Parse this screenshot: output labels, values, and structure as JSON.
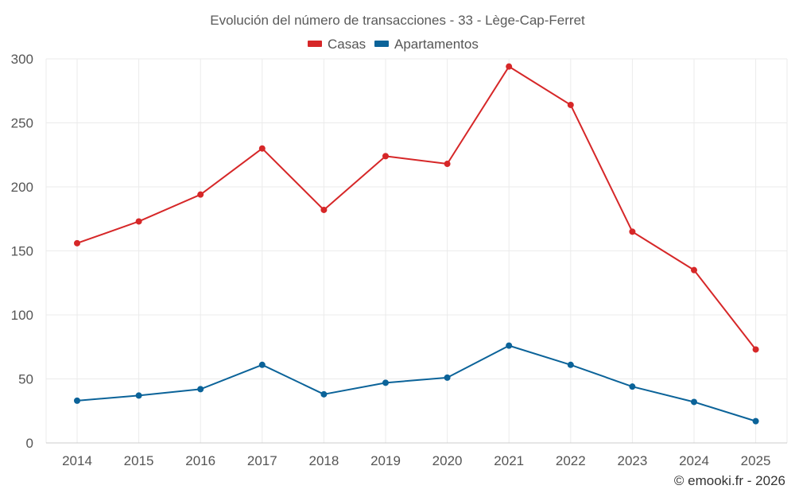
{
  "chart_data": {
    "type": "line",
    "title": "Evolución del número de transacciones - 33 - Lège-Cap-Ferret",
    "categories": [
      "2014",
      "2015",
      "2016",
      "2017",
      "2018",
      "2019",
      "2020",
      "2021",
      "2022",
      "2023",
      "2024",
      "2025"
    ],
    "series": [
      {
        "name": "Casas",
        "color": "#d62728",
        "values": [
          156,
          173,
          194,
          230,
          182,
          224,
          218,
          294,
          264,
          165,
          135,
          73
        ]
      },
      {
        "name": "Apartamentos",
        "color": "#0b6399",
        "values": [
          33,
          37,
          42,
          61,
          38,
          47,
          51,
          76,
          61,
          44,
          32,
          17
        ]
      }
    ],
    "ylim": [
      0,
      300
    ],
    "yticks": [
      0,
      50,
      100,
      150,
      200,
      250,
      300
    ],
    "ytick_labels": [
      "0",
      "50",
      "100",
      "150",
      "200",
      "250",
      "300"
    ],
    "xlabel": "",
    "ylabel": "",
    "grid": true,
    "legend_position": "top-center"
  },
  "credit": "© emooki.fr - 2026"
}
